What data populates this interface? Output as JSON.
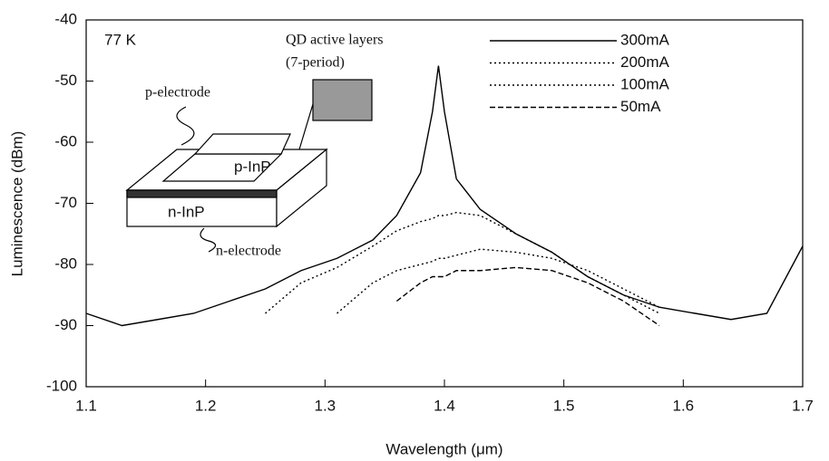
{
  "chart_data": {
    "type": "line",
    "xlabel": "Wavelength (μm)",
    "ylabel": "Luminescence (dBm)",
    "x": [
      1.1,
      1.13,
      1.16,
      1.19,
      1.22,
      1.25,
      1.28,
      1.31,
      1.34,
      1.36,
      1.38,
      1.39,
      1.395,
      1.4,
      1.41,
      1.43,
      1.46,
      1.49,
      1.52,
      1.55,
      1.58,
      1.61,
      1.64,
      1.67,
      1.7
    ],
    "series": [
      {
        "name": "300mA",
        "color": "#000000",
        "dash": "none",
        "values": [
          -88,
          -90,
          -89,
          -88,
          -86,
          -84,
          -81,
          -79,
          -76,
          -72,
          -65,
          -55,
          -47.5,
          -55,
          -66,
          -71,
          -75,
          -78,
          -82,
          -85,
          -87,
          -88,
          -89,
          -88,
          -77
        ]
      },
      {
        "name": "200mA",
        "color": "#000000",
        "dash": "2,3",
        "values": [
          null,
          null,
          null,
          null,
          null,
          -88,
          -83,
          -80.5,
          -77,
          -74.5,
          -73,
          -72.5,
          -72,
          -72,
          -71.5,
          -72,
          -75,
          -78,
          -82,
          -85,
          -88,
          null,
          null,
          null,
          null
        ]
      },
      {
        "name": "100mA",
        "color": "#000000",
        "dash": "2,3",
        "values": [
          null,
          null,
          null,
          null,
          null,
          null,
          null,
          -88,
          -83,
          -81,
          -80,
          -79.5,
          -79,
          -79,
          -78.5,
          -77.5,
          -78,
          -79,
          -81,
          -84,
          -87,
          null,
          null,
          null,
          null
        ]
      },
      {
        "name": "50mA",
        "color": "#000000",
        "dash": "6,3",
        "values": [
          null,
          null,
          null,
          null,
          null,
          null,
          null,
          null,
          null,
          -86,
          -83,
          -82,
          -82,
          -82,
          -81,
          -81,
          -80.5,
          -81,
          -83,
          -86,
          -90,
          null,
          null,
          null,
          null
        ]
      }
    ],
    "annotations": [
      "77 K",
      "QD active layers",
      "(7-period)",
      "p-electrode",
      "p-InP",
      "n-InP",
      "n-electrode"
    ],
    "xlim": [
      1.1,
      1.7
    ],
    "xticks": [
      1.1,
      1.2,
      1.3,
      1.4,
      1.5,
      1.6,
      1.7
    ],
    "ylim": [
      -100,
      -40
    ],
    "yticks": [
      -100,
      -90,
      -80,
      -70,
      -60,
      -50,
      -40
    ],
    "grid": false
  }
}
